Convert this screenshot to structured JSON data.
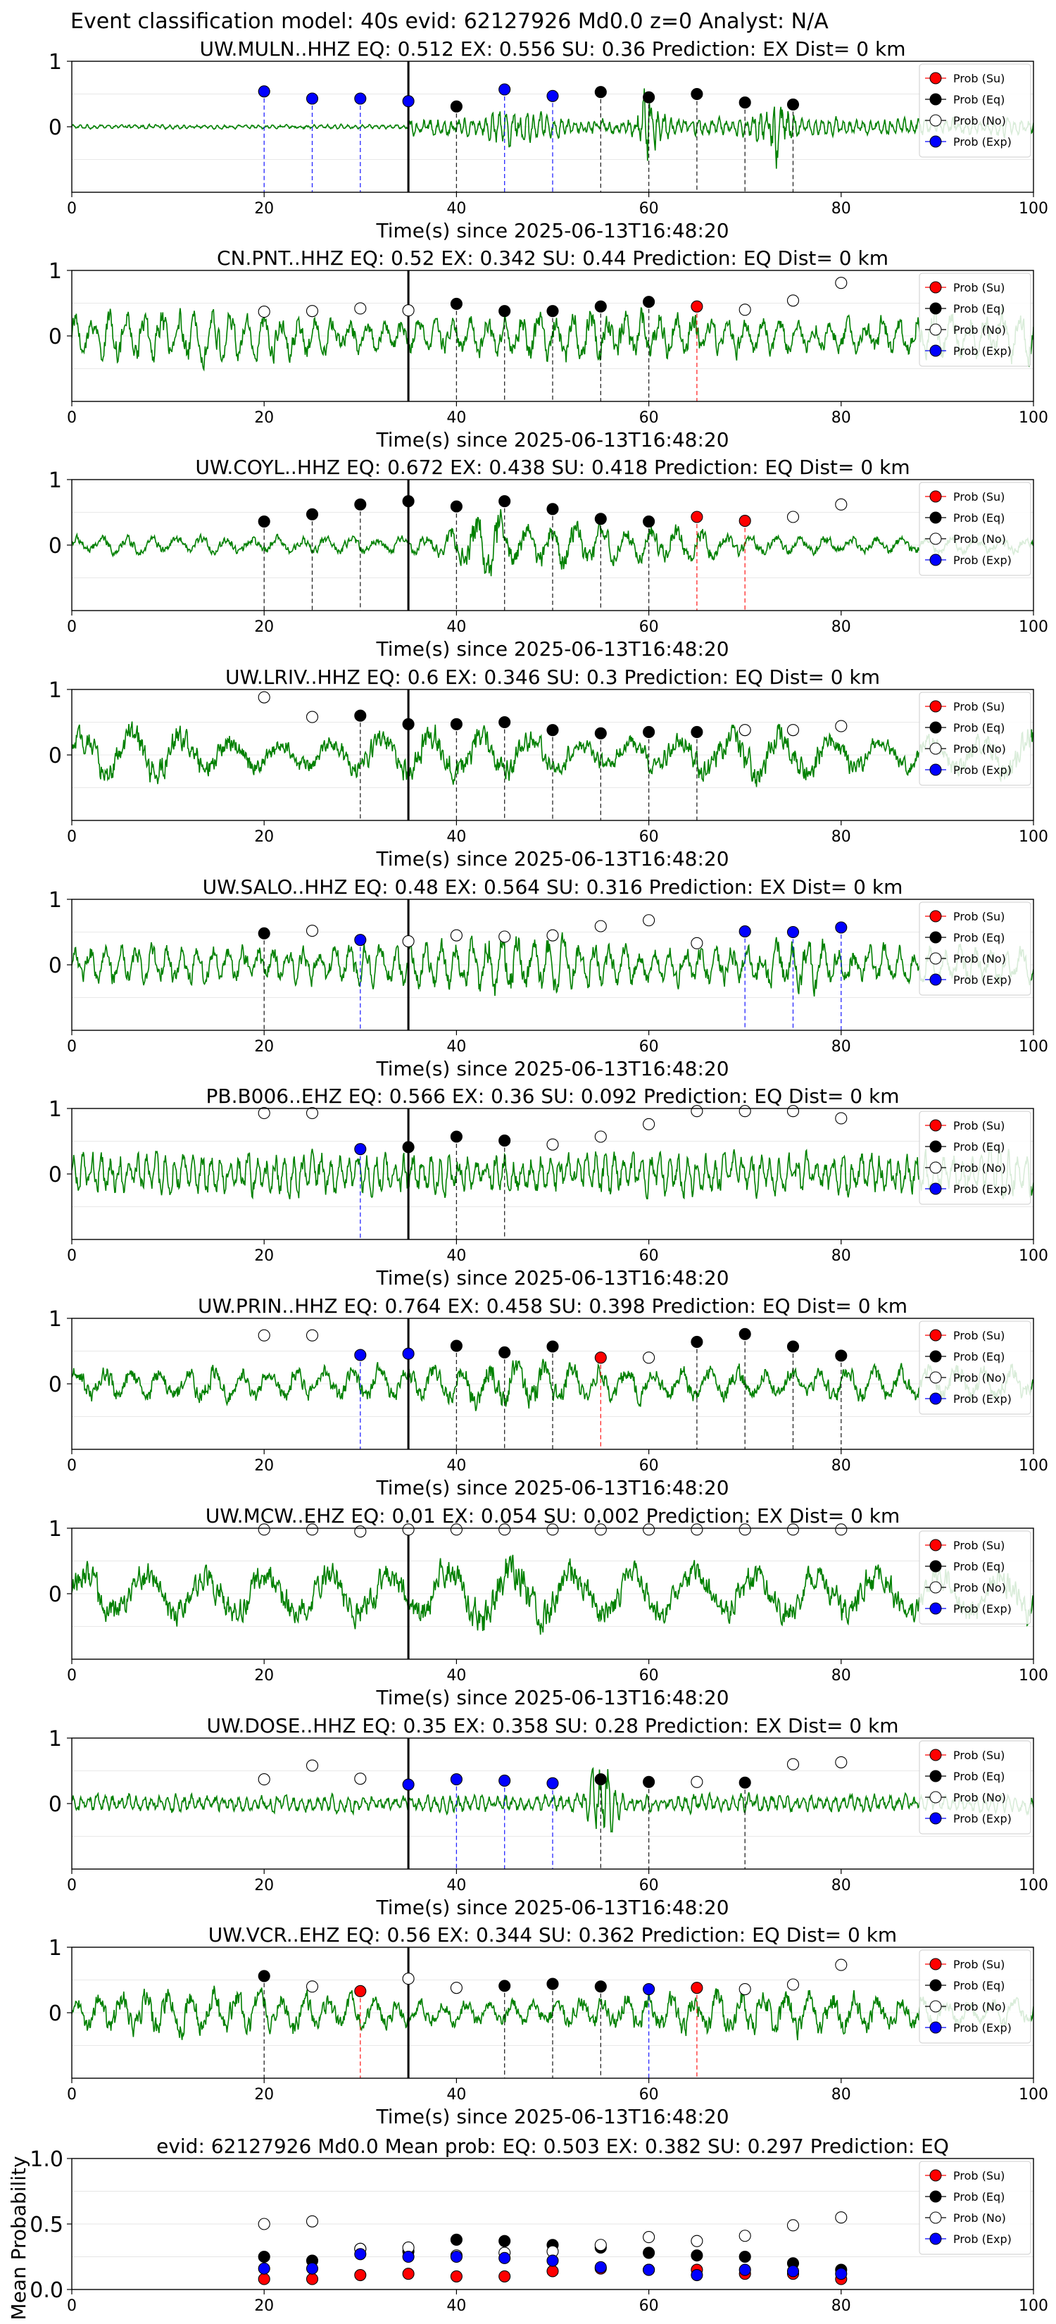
{
  "page_title": "Event classification model: 40s evid: 62127926 Md0.0 z=0 Analyst: N/A",
  "colors": {
    "waveform": "#008000",
    "su": "#ff0000",
    "eq": "#000000",
    "no": "#ffffff",
    "exp": "#0000ff",
    "pick_line": "#000000"
  },
  "legend_labels": [
    "Prob (Su)",
    "Prob (Eq)",
    "Prob (No)",
    "Prob (Exp)"
  ],
  "xlabel": "Time(s) since 2025-06-13T16:48:20",
  "chart_data": [
    {
      "type": "line",
      "title": "UW.MULN..HHZ   EQ: 0.512   EX: 0.556   SU: 0.36   Prediction: EX    Dist= 0 km",
      "xlabel": "Time(s) since 2025-06-13T16:48:20",
      "xlim": [
        0,
        100
      ],
      "ylim": [
        -1,
        1
      ],
      "x_ticks": [
        "0",
        "20",
        "40",
        "60",
        "80",
        "100"
      ],
      "y_ticks": [
        "1",
        "0"
      ],
      "pick_time": 35,
      "legend": "top-right",
      "waveform_description": "green seismogram, low amplitude before 35 s, bursts near 60 s and 72 s",
      "points": [
        {
          "x": 20,
          "y": 0.54,
          "class": "exp"
        },
        {
          "x": 25,
          "y": 0.43,
          "class": "exp"
        },
        {
          "x": 30,
          "y": 0.43,
          "class": "exp"
        },
        {
          "x": 35,
          "y": 0.39,
          "class": "exp"
        },
        {
          "x": 40,
          "y": 0.31,
          "class": "eq"
        },
        {
          "x": 45,
          "y": 0.57,
          "class": "exp"
        },
        {
          "x": 50,
          "y": 0.47,
          "class": "exp"
        },
        {
          "x": 55,
          "y": 0.53,
          "class": "eq"
        },
        {
          "x": 60,
          "y": 0.45,
          "class": "eq"
        },
        {
          "x": 65,
          "y": 0.5,
          "class": "eq"
        },
        {
          "x": 70,
          "y": 0.37,
          "class": "eq"
        },
        {
          "x": 75,
          "y": 0.34,
          "class": "eq"
        }
      ]
    },
    {
      "type": "line",
      "title": "CN.PNT..HHZ   EQ: 0.52  EX: 0.342  SU: 0.44   Prediction: EQ    Dist= 0 km",
      "xlabel": "Time(s) since 2025-06-13T16:48:20",
      "xlim": [
        0,
        100
      ],
      "ylim": [
        -1,
        1
      ],
      "x_ticks": [
        "0",
        "20",
        "40",
        "60",
        "80",
        "100"
      ],
      "y_ticks": [
        "1",
        "0"
      ],
      "pick_time": 35,
      "legend": "top-right",
      "points": [
        {
          "x": 20,
          "y": 0.37,
          "class": "no"
        },
        {
          "x": 25,
          "y": 0.38,
          "class": "no"
        },
        {
          "x": 30,
          "y": 0.42,
          "class": "no"
        },
        {
          "x": 35,
          "y": 0.39,
          "class": "no"
        },
        {
          "x": 40,
          "y": 0.49,
          "class": "eq"
        },
        {
          "x": 45,
          "y": 0.38,
          "class": "eq"
        },
        {
          "x": 50,
          "y": 0.38,
          "class": "eq"
        },
        {
          "x": 55,
          "y": 0.45,
          "class": "eq"
        },
        {
          "x": 60,
          "y": 0.52,
          "class": "eq"
        },
        {
          "x": 65,
          "y": 0.45,
          "class": "su"
        },
        {
          "x": 70,
          "y": 0.4,
          "class": "no"
        },
        {
          "x": 75,
          "y": 0.54,
          "class": "no"
        },
        {
          "x": 80,
          "y": 0.81,
          "class": "no"
        }
      ]
    },
    {
      "type": "line",
      "title": "UW.COYL..HHZ   EQ: 0.672  EX: 0.438  SU: 0.418   Prediction: EQ    Dist= 0 km",
      "xlabel": "Time(s) since 2025-06-13T16:48:20",
      "xlim": [
        0,
        100
      ],
      "ylim": [
        -1,
        1
      ],
      "x_ticks": [
        "0",
        "20",
        "40",
        "60",
        "80",
        "100"
      ],
      "y_ticks": [
        "1",
        "0"
      ],
      "pick_time": 35,
      "legend": "top-right",
      "points": [
        {
          "x": 20,
          "y": 0.36,
          "class": "eq"
        },
        {
          "x": 25,
          "y": 0.47,
          "class": "eq"
        },
        {
          "x": 30,
          "y": 0.62,
          "class": "eq"
        },
        {
          "x": 35,
          "y": 0.67,
          "class": "eq"
        },
        {
          "x": 40,
          "y": 0.59,
          "class": "eq"
        },
        {
          "x": 45,
          "y": 0.67,
          "class": "eq"
        },
        {
          "x": 50,
          "y": 0.55,
          "class": "eq"
        },
        {
          "x": 55,
          "y": 0.4,
          "class": "eq"
        },
        {
          "x": 60,
          "y": 0.36,
          "class": "eq"
        },
        {
          "x": 65,
          "y": 0.43,
          "class": "su"
        },
        {
          "x": 70,
          "y": 0.37,
          "class": "su"
        },
        {
          "x": 75,
          "y": 0.43,
          "class": "no"
        },
        {
          "x": 80,
          "y": 0.62,
          "class": "no"
        }
      ]
    },
    {
      "type": "line",
      "title": "UW.LRIV..HHZ   EQ: 0.6  EX: 0.346  SU: 0.3   Prediction: EQ    Dist= 0 km",
      "xlabel": "Time(s) since 2025-06-13T16:48:20",
      "xlim": [
        0,
        100
      ],
      "ylim": [
        -1,
        1
      ],
      "x_ticks": [
        "0",
        "20",
        "40",
        "60",
        "80",
        "100"
      ],
      "y_ticks": [
        "1",
        "0"
      ],
      "pick_time": 35,
      "legend": "top-right",
      "points": [
        {
          "x": 20,
          "y": 0.88,
          "class": "no"
        },
        {
          "x": 25,
          "y": 0.58,
          "class": "no"
        },
        {
          "x": 30,
          "y": 0.6,
          "class": "eq"
        },
        {
          "x": 35,
          "y": 0.47,
          "class": "eq"
        },
        {
          "x": 40,
          "y": 0.47,
          "class": "eq"
        },
        {
          "x": 45,
          "y": 0.5,
          "class": "eq"
        },
        {
          "x": 50,
          "y": 0.38,
          "class": "eq"
        },
        {
          "x": 55,
          "y": 0.33,
          "class": "eq"
        },
        {
          "x": 60,
          "y": 0.35,
          "class": "eq"
        },
        {
          "x": 65,
          "y": 0.35,
          "class": "eq"
        },
        {
          "x": 70,
          "y": 0.38,
          "class": "no"
        },
        {
          "x": 75,
          "y": 0.38,
          "class": "no"
        },
        {
          "x": 80,
          "y": 0.44,
          "class": "no"
        }
      ]
    },
    {
      "type": "line",
      "title": "UW.SALO..HHZ   EQ: 0.48  EX: 0.564  SU: 0.316   Prediction: EX    Dist= 0 km",
      "xlabel": "Time(s) since 2025-06-13T16:48:20",
      "xlim": [
        0,
        100
      ],
      "ylim": [
        -1,
        1
      ],
      "x_ticks": [
        "0",
        "20",
        "40",
        "60",
        "80",
        "100"
      ],
      "y_ticks": [
        "1",
        "0"
      ],
      "pick_time": 35,
      "legend": "top-right",
      "points": [
        {
          "x": 20,
          "y": 0.48,
          "class": "eq"
        },
        {
          "x": 25,
          "y": 0.52,
          "class": "no"
        },
        {
          "x": 30,
          "y": 0.38,
          "class": "exp"
        },
        {
          "x": 35,
          "y": 0.36,
          "class": "no"
        },
        {
          "x": 40,
          "y": 0.45,
          "class": "no"
        },
        {
          "x": 45,
          "y": 0.43,
          "class": "no"
        },
        {
          "x": 50,
          "y": 0.45,
          "class": "no"
        },
        {
          "x": 55,
          "y": 0.59,
          "class": "no"
        },
        {
          "x": 60,
          "y": 0.68,
          "class": "no"
        },
        {
          "x": 65,
          "y": 0.33,
          "class": "no"
        },
        {
          "x": 70,
          "y": 0.51,
          "class": "exp"
        },
        {
          "x": 75,
          "y": 0.5,
          "class": "exp"
        },
        {
          "x": 80,
          "y": 0.57,
          "class": "exp"
        }
      ]
    },
    {
      "type": "line",
      "title": "PB.B006..EHZ   EQ: 0.566  EX: 0.36  SU: 0.092   Prediction: EQ    Dist= 0 km",
      "xlabel": "Time(s) since 2025-06-13T16:48:20",
      "xlim": [
        0,
        100
      ],
      "ylim": [
        -1,
        1
      ],
      "x_ticks": [
        "0",
        "20",
        "40",
        "60",
        "80",
        "100"
      ],
      "y_ticks": [
        "1",
        "0"
      ],
      "pick_time": 35,
      "legend": "top-right",
      "points": [
        {
          "x": 20,
          "y": 0.93,
          "class": "no"
        },
        {
          "x": 25,
          "y": 0.93,
          "class": "no"
        },
        {
          "x": 30,
          "y": 0.38,
          "class": "exp"
        },
        {
          "x": 35,
          "y": 0.41,
          "class": "eq"
        },
        {
          "x": 40,
          "y": 0.57,
          "class": "eq"
        },
        {
          "x": 45,
          "y": 0.51,
          "class": "eq"
        },
        {
          "x": 50,
          "y": 0.45,
          "class": "no"
        },
        {
          "x": 55,
          "y": 0.57,
          "class": "no"
        },
        {
          "x": 60,
          "y": 0.76,
          "class": "no"
        },
        {
          "x": 65,
          "y": 0.96,
          "class": "no"
        },
        {
          "x": 70,
          "y": 0.96,
          "class": "no"
        },
        {
          "x": 75,
          "y": 0.96,
          "class": "no"
        },
        {
          "x": 80,
          "y": 0.85,
          "class": "no"
        }
      ]
    },
    {
      "type": "line",
      "title": "UW.PRIN..HHZ   EQ: 0.764  EX: 0.458  SU: 0.398   Prediction: EQ    Dist= 0 km",
      "xlabel": "Time(s) since 2025-06-13T16:48:20",
      "xlim": [
        0,
        100
      ],
      "ylim": [
        -1,
        1
      ],
      "x_ticks": [
        "0",
        "20",
        "40",
        "60",
        "80",
        "100"
      ],
      "y_ticks": [
        "1",
        "0"
      ],
      "pick_time": 35,
      "legend": "top-right",
      "points": [
        {
          "x": 20,
          "y": 0.74,
          "class": "no"
        },
        {
          "x": 25,
          "y": 0.74,
          "class": "no"
        },
        {
          "x": 30,
          "y": 0.44,
          "class": "exp"
        },
        {
          "x": 35,
          "y": 0.46,
          "class": "exp"
        },
        {
          "x": 40,
          "y": 0.58,
          "class": "eq"
        },
        {
          "x": 45,
          "y": 0.48,
          "class": "eq"
        },
        {
          "x": 50,
          "y": 0.57,
          "class": "eq"
        },
        {
          "x": 55,
          "y": 0.4,
          "class": "su"
        },
        {
          "x": 60,
          "y": 0.4,
          "class": "no"
        },
        {
          "x": 65,
          "y": 0.64,
          "class": "eq"
        },
        {
          "x": 70,
          "y": 0.76,
          "class": "eq"
        },
        {
          "x": 75,
          "y": 0.57,
          "class": "eq"
        },
        {
          "x": 80,
          "y": 0.43,
          "class": "eq"
        }
      ]
    },
    {
      "type": "line",
      "title": "UW.MCW..EHZ   EQ: 0.01  EX: 0.054  SU: 0.002   Prediction: EX    Dist= 0 km",
      "xlabel": "Time(s) since 2025-06-13T16:48:20",
      "xlim": [
        0,
        100
      ],
      "ylim": [
        -1,
        1
      ],
      "x_ticks": [
        "0",
        "20",
        "40",
        "60",
        "80",
        "100"
      ],
      "y_ticks": [
        "1",
        "0"
      ],
      "pick_time": 35,
      "legend": "top-right",
      "points": [
        {
          "x": 20,
          "y": 0.98,
          "class": "no"
        },
        {
          "x": 25,
          "y": 0.98,
          "class": "no"
        },
        {
          "x": 30,
          "y": 0.95,
          "class": "no"
        },
        {
          "x": 35,
          "y": 0.98,
          "class": "no"
        },
        {
          "x": 40,
          "y": 0.98,
          "class": "no"
        },
        {
          "x": 45,
          "y": 0.98,
          "class": "no"
        },
        {
          "x": 50,
          "y": 0.98,
          "class": "no"
        },
        {
          "x": 55,
          "y": 0.98,
          "class": "no"
        },
        {
          "x": 60,
          "y": 0.98,
          "class": "no"
        },
        {
          "x": 65,
          "y": 0.98,
          "class": "no"
        },
        {
          "x": 70,
          "y": 0.98,
          "class": "no"
        },
        {
          "x": 75,
          "y": 0.98,
          "class": "no"
        },
        {
          "x": 80,
          "y": 0.98,
          "class": "no"
        }
      ]
    },
    {
      "type": "line",
      "title": "UW.DOSE..HHZ   EQ: 0.35  EX: 0.358  SU: 0.28   Prediction: EX    Dist= 0 km",
      "xlabel": "Time(s) since 2025-06-13T16:48:20",
      "xlim": [
        0,
        100
      ],
      "ylim": [
        -1,
        1
      ],
      "x_ticks": [
        "0",
        "20",
        "40",
        "60",
        "80",
        "100"
      ],
      "y_ticks": [
        "1",
        "0"
      ],
      "pick_time": 35,
      "legend": "top-right",
      "points": [
        {
          "x": 20,
          "y": 0.37,
          "class": "no"
        },
        {
          "x": 25,
          "y": 0.58,
          "class": "no"
        },
        {
          "x": 30,
          "y": 0.38,
          "class": "no"
        },
        {
          "x": 35,
          "y": 0.29,
          "class": "exp"
        },
        {
          "x": 40,
          "y": 0.37,
          "class": "exp"
        },
        {
          "x": 45,
          "y": 0.35,
          "class": "exp"
        },
        {
          "x": 50,
          "y": 0.31,
          "class": "exp"
        },
        {
          "x": 55,
          "y": 0.37,
          "class": "eq"
        },
        {
          "x": 60,
          "y": 0.33,
          "class": "eq"
        },
        {
          "x": 65,
          "y": 0.33,
          "class": "no"
        },
        {
          "x": 70,
          "y": 0.32,
          "class": "eq"
        },
        {
          "x": 75,
          "y": 0.6,
          "class": "no"
        },
        {
          "x": 80,
          "y": 0.63,
          "class": "no"
        }
      ]
    },
    {
      "type": "line",
      "title": "UW.VCR..EHZ   EQ: 0.56  EX: 0.344  SU: 0.362   Prediction: EQ    Dist= 0 km",
      "xlabel": "Time(s) since 2025-06-13T16:48:20",
      "xlim": [
        0,
        100
      ],
      "ylim": [
        -1,
        1
      ],
      "x_ticks": [
        "0",
        "20",
        "40",
        "60",
        "80",
        "100"
      ],
      "y_ticks": [
        "1",
        "0"
      ],
      "pick_time": 35,
      "legend": "top-right",
      "points": [
        {
          "x": 20,
          "y": 0.56,
          "class": "eq"
        },
        {
          "x": 25,
          "y": 0.4,
          "class": "no"
        },
        {
          "x": 30,
          "y": 0.33,
          "class": "su"
        },
        {
          "x": 35,
          "y": 0.52,
          "class": "no"
        },
        {
          "x": 40,
          "y": 0.38,
          "class": "no"
        },
        {
          "x": 45,
          "y": 0.41,
          "class": "eq"
        },
        {
          "x": 50,
          "y": 0.44,
          "class": "eq"
        },
        {
          "x": 55,
          "y": 0.4,
          "class": "eq"
        },
        {
          "x": 60,
          "y": 0.36,
          "class": "exp"
        },
        {
          "x": 65,
          "y": 0.38,
          "class": "su"
        },
        {
          "x": 70,
          "y": 0.36,
          "class": "no"
        },
        {
          "x": 75,
          "y": 0.43,
          "class": "no"
        },
        {
          "x": 80,
          "y": 0.73,
          "class": "no"
        }
      ]
    },
    {
      "type": "scatter",
      "title": "evid: 62127926  Md0.0   Mean prob:   EQ: 0.503  EX: 0.382  SU: 0.297   Prediction: EQ",
      "ylabel": "Mean Probability",
      "xlim": [
        0,
        100
      ],
      "ylim": [
        0,
        1
      ],
      "x_ticks": [
        "0",
        "20",
        "40",
        "60",
        "80",
        "100"
      ],
      "y_ticks": [
        "1.0",
        "0.5",
        "0.0"
      ],
      "legend": "top-right",
      "grid": true,
      "x": [
        20,
        25,
        30,
        35,
        40,
        45,
        50,
        55,
        60,
        65,
        70,
        75,
        80
      ],
      "series": [
        {
          "name": "Prob (Su)",
          "class": "su",
          "values": [
            0.08,
            0.08,
            0.11,
            0.12,
            0.1,
            0.1,
            0.14,
            0.16,
            0.15,
            0.15,
            0.12,
            0.12,
            0.08
          ]
        },
        {
          "name": "Prob (Eq)",
          "class": "eq",
          "values": [
            0.25,
            0.22,
            0.31,
            0.29,
            0.38,
            0.37,
            0.34,
            0.32,
            0.28,
            0.26,
            0.25,
            0.2,
            0.15
          ]
        },
        {
          "name": "Prob (No)",
          "class": "no",
          "values": [
            0.5,
            0.52,
            0.31,
            0.32,
            0.26,
            0.28,
            0.29,
            0.34,
            0.4,
            0.37,
            0.41,
            0.49,
            0.55
          ]
        },
        {
          "name": "Prob (Exp)",
          "class": "exp",
          "values": [
            0.16,
            0.16,
            0.27,
            0.25,
            0.25,
            0.24,
            0.22,
            0.17,
            0.15,
            0.11,
            0.15,
            0.14,
            0.12
          ]
        }
      ]
    }
  ]
}
